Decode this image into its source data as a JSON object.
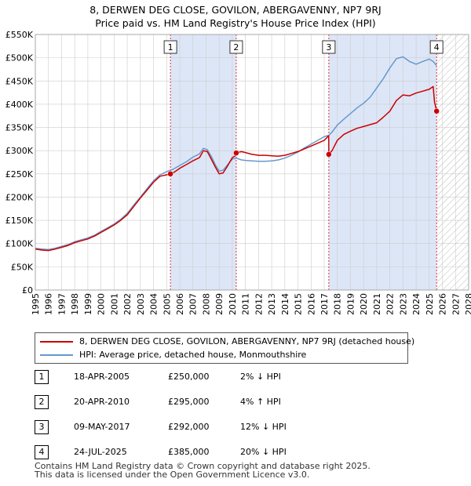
{
  "title_line1": "8, DERWEN DEG CLOSE, GOVILON, ABERGAVENNY, NP7 9RJ",
  "title_line2": "Price paid vs. HM Land Registry's House Price Index (HPI)",
  "colors": {
    "price": "#cc0000",
    "hpi": "#6699cc",
    "shade": "#dde6f7",
    "vline": "#dd3333",
    "grid": "#cccccc",
    "hatch": "#bbbbbb"
  },
  "chart_data": {
    "type": "line",
    "title": "Price paid vs. HM Land Registry's House Price Index (HPI)",
    "xlabel": "",
    "ylabel": "",
    "xlim": [
      1995,
      2028
    ],
    "ylim": [
      0,
      550000
    ],
    "x_ticks": [
      1995,
      1996,
      1997,
      1998,
      1999,
      2000,
      2001,
      2002,
      2003,
      2004,
      2005,
      2006,
      2007,
      2008,
      2009,
      2010,
      2011,
      2012,
      2013,
      2014,
      2015,
      2016,
      2017,
      2018,
      2019,
      2020,
      2021,
      2022,
      2023,
      2024,
      2025,
      2026,
      2027,
      2028
    ],
    "y_ticks": [
      0,
      50000,
      100000,
      150000,
      200000,
      250000,
      300000,
      350000,
      400000,
      450000,
      500000,
      550000
    ],
    "y_tick_labels": [
      "£0",
      "£50K",
      "£100K",
      "£150K",
      "£200K",
      "£250K",
      "£300K",
      "£350K",
      "£400K",
      "£450K",
      "£500K",
      "£550K"
    ],
    "data_end": 2025.56,
    "shaded_periods": [
      [
        2005.29,
        2010.3
      ],
      [
        2017.35,
        2025.56
      ]
    ],
    "series": [
      {
        "name": "8, DERWEN DEG CLOSE, GOVILON, ABERGAVENNY, NP7 9RJ (detached house)",
        "color": "#cc0000",
        "x": [
          1995.0,
          1995.5,
          1996.0,
          1996.5,
          1997.0,
          1997.5,
          1998.0,
          1998.5,
          1999.0,
          1999.5,
          2000.0,
          2000.5,
          2001.0,
          2001.5,
          2002.0,
          2002.5,
          2003.0,
          2003.5,
          2004.0,
          2004.5,
          2005.0,
          2005.29,
          2005.6,
          2006.0,
          2006.5,
          2007.0,
          2007.5,
          2007.8,
          2008.1,
          2008.4,
          2008.7,
          2009.0,
          2009.3,
          2009.6,
          2010.0,
          2010.29,
          2010.3,
          2010.7,
          2011.0,
          2011.5,
          2012.0,
          2012.5,
          2013.0,
          2013.5,
          2014.0,
          2014.5,
          2015.0,
          2015.5,
          2016.0,
          2016.5,
          2017.0,
          2017.34,
          2017.35,
          2017.6,
          2018.0,
          2018.5,
          2019.0,
          2019.5,
          2020.0,
          2020.5,
          2021.0,
          2021.5,
          2022.0,
          2022.5,
          2023.0,
          2023.5,
          2024.0,
          2024.5,
          2025.0,
          2025.3,
          2025.4,
          2025.56
        ],
        "y": [
          88000,
          86000,
          85000,
          88000,
          92000,
          96000,
          102000,
          106000,
          110000,
          116000,
          124000,
          132000,
          140000,
          150000,
          162000,
          180000,
          198000,
          215000,
          232000,
          245000,
          248000,
          250000,
          254000,
          262000,
          270000,
          278000,
          285000,
          300000,
          298000,
          282000,
          265000,
          250000,
          252000,
          265000,
          285000,
          290000,
          295000,
          298000,
          296000,
          292000,
          290000,
          290000,
          289000,
          288000,
          290000,
          294000,
          298000,
          304000,
          310000,
          316000,
          322000,
          332000,
          292000,
          300000,
          322000,
          335000,
          342000,
          348000,
          352000,
          356000,
          360000,
          372000,
          385000,
          408000,
          420000,
          418000,
          424000,
          428000,
          432000,
          438000,
          405000,
          385000
        ]
      },
      {
        "name": "HPI: Average price, detached house, Monmouthshire",
        "color": "#6699cc",
        "x": [
          1995.0,
          1995.5,
          1996.0,
          1996.5,
          1997.0,
          1997.5,
          1998.0,
          1998.5,
          1999.0,
          1999.5,
          2000.0,
          2000.5,
          2001.0,
          2001.5,
          2002.0,
          2002.5,
          2003.0,
          2003.5,
          2004.0,
          2004.5,
          2005.0,
          2005.5,
          2006.0,
          2006.5,
          2007.0,
          2007.5,
          2007.8,
          2008.1,
          2008.4,
          2008.7,
          2009.0,
          2009.3,
          2009.6,
          2010.0,
          2010.3,
          2010.7,
          2011.0,
          2011.5,
          2012.0,
          2012.5,
          2013.0,
          2013.5,
          2014.0,
          2014.5,
          2015.0,
          2015.5,
          2016.0,
          2016.5,
          2017.0,
          2017.35,
          2017.6,
          2018.0,
          2018.5,
          2019.0,
          2019.5,
          2020.0,
          2020.5,
          2021.0,
          2021.5,
          2022.0,
          2022.5,
          2023.0,
          2023.5,
          2024.0,
          2024.5,
          2025.0,
          2025.3,
          2025.56
        ],
        "y": [
          90000,
          88000,
          87000,
          90000,
          94000,
          98000,
          104000,
          108000,
          112000,
          118000,
          126000,
          134000,
          142000,
          152000,
          165000,
          183000,
          200000,
          218000,
          235000,
          248000,
          255000,
          260000,
          268000,
          276000,
          286000,
          293000,
          305000,
          302000,
          288000,
          270000,
          256000,
          258000,
          268000,
          282000,
          284000,
          280000,
          279000,
          278000,
          277000,
          277000,
          278000,
          280000,
          284000,
          290000,
          297000,
          306000,
          314000,
          322000,
          330000,
          333000,
          340000,
          355000,
          368000,
          380000,
          392000,
          402000,
          415000,
          435000,
          455000,
          478000,
          498000,
          502000,
          492000,
          486000,
          492000,
          497000,
          492000,
          483000
        ]
      }
    ],
    "sales": [
      {
        "label": "1",
        "x": 2005.29,
        "y": 250000,
        "date": "18-APR-2005",
        "price": "£250,000",
        "hpi": "2% ↓ HPI"
      },
      {
        "label": "2",
        "x": 2010.3,
        "y": 295000,
        "date": "20-APR-2010",
        "price": "£295,000",
        "hpi": "4% ↑ HPI"
      },
      {
        "label": "3",
        "x": 2017.35,
        "y": 292000,
        "date": "09-MAY-2017",
        "price": "£292,000",
        "hpi": "12% ↓ HPI"
      },
      {
        "label": "4",
        "x": 2025.56,
        "y": 385000,
        "date": "24-JUL-2025",
        "price": "£385,000",
        "hpi": "20% ↓ HPI"
      }
    ]
  },
  "legend": {
    "price_label": "8, DERWEN DEG CLOSE, GOVILON, ABERGAVENNY, NP7 9RJ (detached house)",
    "hpi_label": "HPI: Average price, detached house, Monmouthshire"
  },
  "footer": {
    "line1": "Contains HM Land Registry data © Crown copyright and database right 2025.",
    "line2": "This data is licensed under the Open Government Licence v3.0."
  }
}
